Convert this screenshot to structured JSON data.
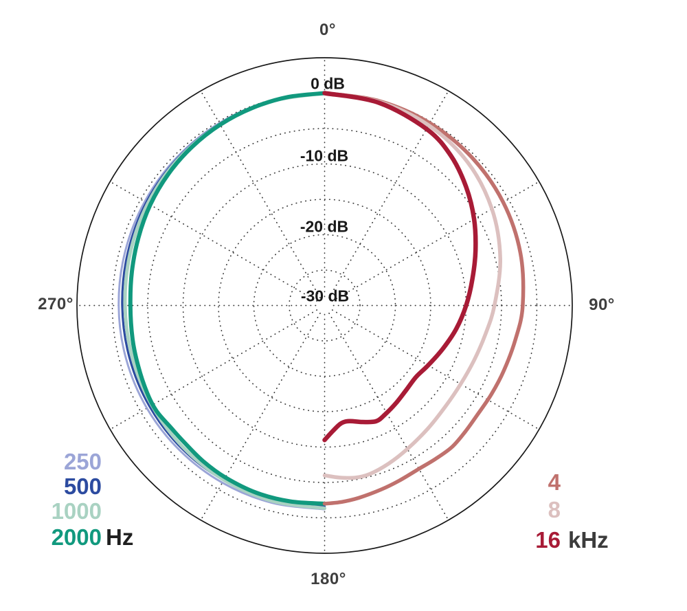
{
  "chart_data": {
    "type": "line",
    "subtype": "polar",
    "title": "",
    "description": "Polar response pattern (dB vs angle) for seven frequency bands",
    "angle_unit": "degrees",
    "angle_labels": [
      {
        "text": "0°",
        "angle": 0
      },
      {
        "text": "90°",
        "angle": 90
      },
      {
        "text": "180°",
        "angle": 180
      },
      {
        "text": "270°",
        "angle": 270
      }
    ],
    "radial_labels": [
      {
        "text": "0 dB",
        "db": 0
      },
      {
        "text": "-10 dB",
        "db": -10
      },
      {
        "text": "-20 dB",
        "db": -20
      },
      {
        "text": "-30 dB",
        "db": -30
      }
    ],
    "radial_axis": {
      "unit": "dB",
      "max_ring_db": 0,
      "center_db": -30,
      "ring_step_db": 5,
      "outer_boundary_db": 5,
      "grid_angle_step_deg": 30
    },
    "grid": {
      "dot_color": "#3b3b3b",
      "outer_circle_color": "#181818"
    },
    "series": [
      {
        "name": "250 Hz",
        "legend_label": "250",
        "color": "#9ba5d7",
        "width": 3,
        "points": [
          [
            180,
            -1.2
          ],
          [
            195,
            -1.15
          ],
          [
            210,
            -1.1
          ],
          [
            225,
            -1.05
          ],
          [
            240,
            -1.0
          ],
          [
            255,
            -0.95
          ],
          [
            270,
            -0.9
          ],
          [
            285,
            -0.8
          ],
          [
            300,
            -0.65
          ],
          [
            315,
            -0.45
          ],
          [
            330,
            -0.25
          ],
          [
            345,
            -0.1
          ],
          [
            360,
            0
          ]
        ]
      },
      {
        "name": "500 Hz",
        "legend_label": "500",
        "color": "#2c4ba0",
        "width": 3.2,
        "points": [
          [
            180,
            -1.6
          ],
          [
            195,
            -1.55
          ],
          [
            210,
            -1.5
          ],
          [
            225,
            -1.45
          ],
          [
            240,
            -1.45
          ],
          [
            255,
            -1.45
          ],
          [
            270,
            -1.4
          ],
          [
            285,
            -1.2
          ],
          [
            300,
            -0.9
          ],
          [
            315,
            -0.6
          ],
          [
            330,
            -0.35
          ],
          [
            345,
            -0.15
          ],
          [
            360,
            0
          ]
        ]
      },
      {
        "name": "1000 Hz",
        "legend_label": "1000",
        "color": "#a9d2c2",
        "width": 5,
        "points": [
          [
            180,
            -1.35
          ],
          [
            195,
            -1.4
          ],
          [
            210,
            -1.55
          ],
          [
            225,
            -1.7
          ],
          [
            240,
            -1.8
          ],
          [
            255,
            -1.85
          ],
          [
            270,
            -1.8
          ],
          [
            285,
            -1.55
          ],
          [
            300,
            -1.15
          ],
          [
            315,
            -0.75
          ],
          [
            330,
            -0.45
          ],
          [
            345,
            -0.2
          ],
          [
            360,
            0
          ]
        ]
      },
      {
        "name": "2000 Hz",
        "legend_label": "2000",
        "color": "#11997e",
        "width": 6,
        "points": [
          [
            180,
            -2.0
          ],
          [
            190,
            -1.9
          ],
          [
            200,
            -1.85
          ],
          [
            210,
            -1.95
          ],
          [
            218,
            -2.1
          ],
          [
            226,
            -2.3
          ],
          [
            232,
            -2.25
          ],
          [
            238,
            -1.95
          ],
          [
            244,
            -2.05
          ],
          [
            252,
            -2.3
          ],
          [
            260,
            -2.45
          ],
          [
            270,
            -2.55
          ],
          [
            280,
            -2.35
          ],
          [
            290,
            -2.0
          ],
          [
            300,
            -1.55
          ],
          [
            310,
            -1.15
          ],
          [
            320,
            -0.8
          ],
          [
            330,
            -0.5
          ],
          [
            340,
            -0.28
          ],
          [
            350,
            -0.1
          ],
          [
            360,
            0
          ]
        ]
      },
      {
        "name": "4 kHz",
        "legend_label": "4",
        "color": "#c0716d",
        "width": 5.5,
        "points": [
          [
            0,
            0
          ],
          [
            15,
            -0.1
          ],
          [
            30,
            -0.25
          ],
          [
            45,
            -0.5
          ],
          [
            60,
            -0.85
          ],
          [
            75,
            -1.35
          ],
          [
            90,
            -2.0
          ],
          [
            100,
            -2.6
          ],
          [
            110,
            -3.05
          ],
          [
            118,
            -3.3
          ],
          [
            126,
            -3.45
          ],
          [
            132,
            -3.3
          ],
          [
            138,
            -3.1
          ],
          [
            144,
            -3.25
          ],
          [
            150,
            -3.35
          ],
          [
            157,
            -3.1
          ],
          [
            163,
            -2.8
          ],
          [
            170,
            -2.4
          ],
          [
            175,
            -2.15
          ],
          [
            180,
            -2.0
          ]
        ]
      },
      {
        "name": "8 kHz",
        "legend_label": "8",
        "color": "#dcc0bf",
        "width": 5.5,
        "points": [
          [
            0,
            0
          ],
          [
            15,
            -0.2
          ],
          [
            30,
            -0.6
          ],
          [
            45,
            -1.4
          ],
          [
            60,
            -2.7
          ],
          [
            75,
            -4.3
          ],
          [
            90,
            -6.0
          ],
          [
            100,
            -6.9
          ],
          [
            110,
            -7.5
          ],
          [
            120,
            -7.8
          ],
          [
            130,
            -7.75
          ],
          [
            140,
            -7.3
          ],
          [
            150,
            -6.6
          ],
          [
            158,
            -5.9
          ],
          [
            165,
            -5.35
          ],
          [
            170,
            -5.3
          ],
          [
            175,
            -5.6
          ],
          [
            180,
            -6.0
          ]
        ]
      },
      {
        "name": "16 kHz",
        "legend_label": "16",
        "color": "#a81b36",
        "width": 6.5,
        "points": [
          [
            0,
            0
          ],
          [
            15,
            -0.35
          ],
          [
            30,
            -1.2
          ],
          [
            40,
            -2.3
          ],
          [
            50,
            -3.9
          ],
          [
            60,
            -5.6
          ],
          [
            70,
            -7.3
          ],
          [
            80,
            -8.8
          ],
          [
            90,
            -10.0
          ],
          [
            100,
            -11.1
          ],
          [
            110,
            -12.2
          ],
          [
            120,
            -13.1
          ],
          [
            128,
            -13.6
          ],
          [
            136,
            -13.4
          ],
          [
            144,
            -12.9
          ],
          [
            151,
            -12.4
          ],
          [
            156,
            -12.1
          ],
          [
            162,
            -12.7
          ],
          [
            168,
            -13.3
          ],
          [
            172,
            -13.2
          ],
          [
            176,
            -12.3
          ],
          [
            180,
            -11.0
          ]
        ]
      }
    ],
    "legend_left": {
      "suffix": "Hz",
      "suffix_color": "#1f1f1f",
      "items": [
        {
          "label": "250",
          "color": "#9ba5d7"
        },
        {
          "label": "500",
          "color": "#2c4ba0"
        },
        {
          "label": "1000",
          "color": "#a9d2c2"
        },
        {
          "label": "2000",
          "color": "#11997e"
        }
      ]
    },
    "legend_right": {
      "suffix": "kHz",
      "suffix_color": "#3c3c3c",
      "items": [
        {
          "label": "4",
          "color": "#c0716d"
        },
        {
          "label": "8",
          "color": "#dcc0bf"
        },
        {
          "label": "16",
          "color": "#a81b36"
        }
      ]
    }
  }
}
